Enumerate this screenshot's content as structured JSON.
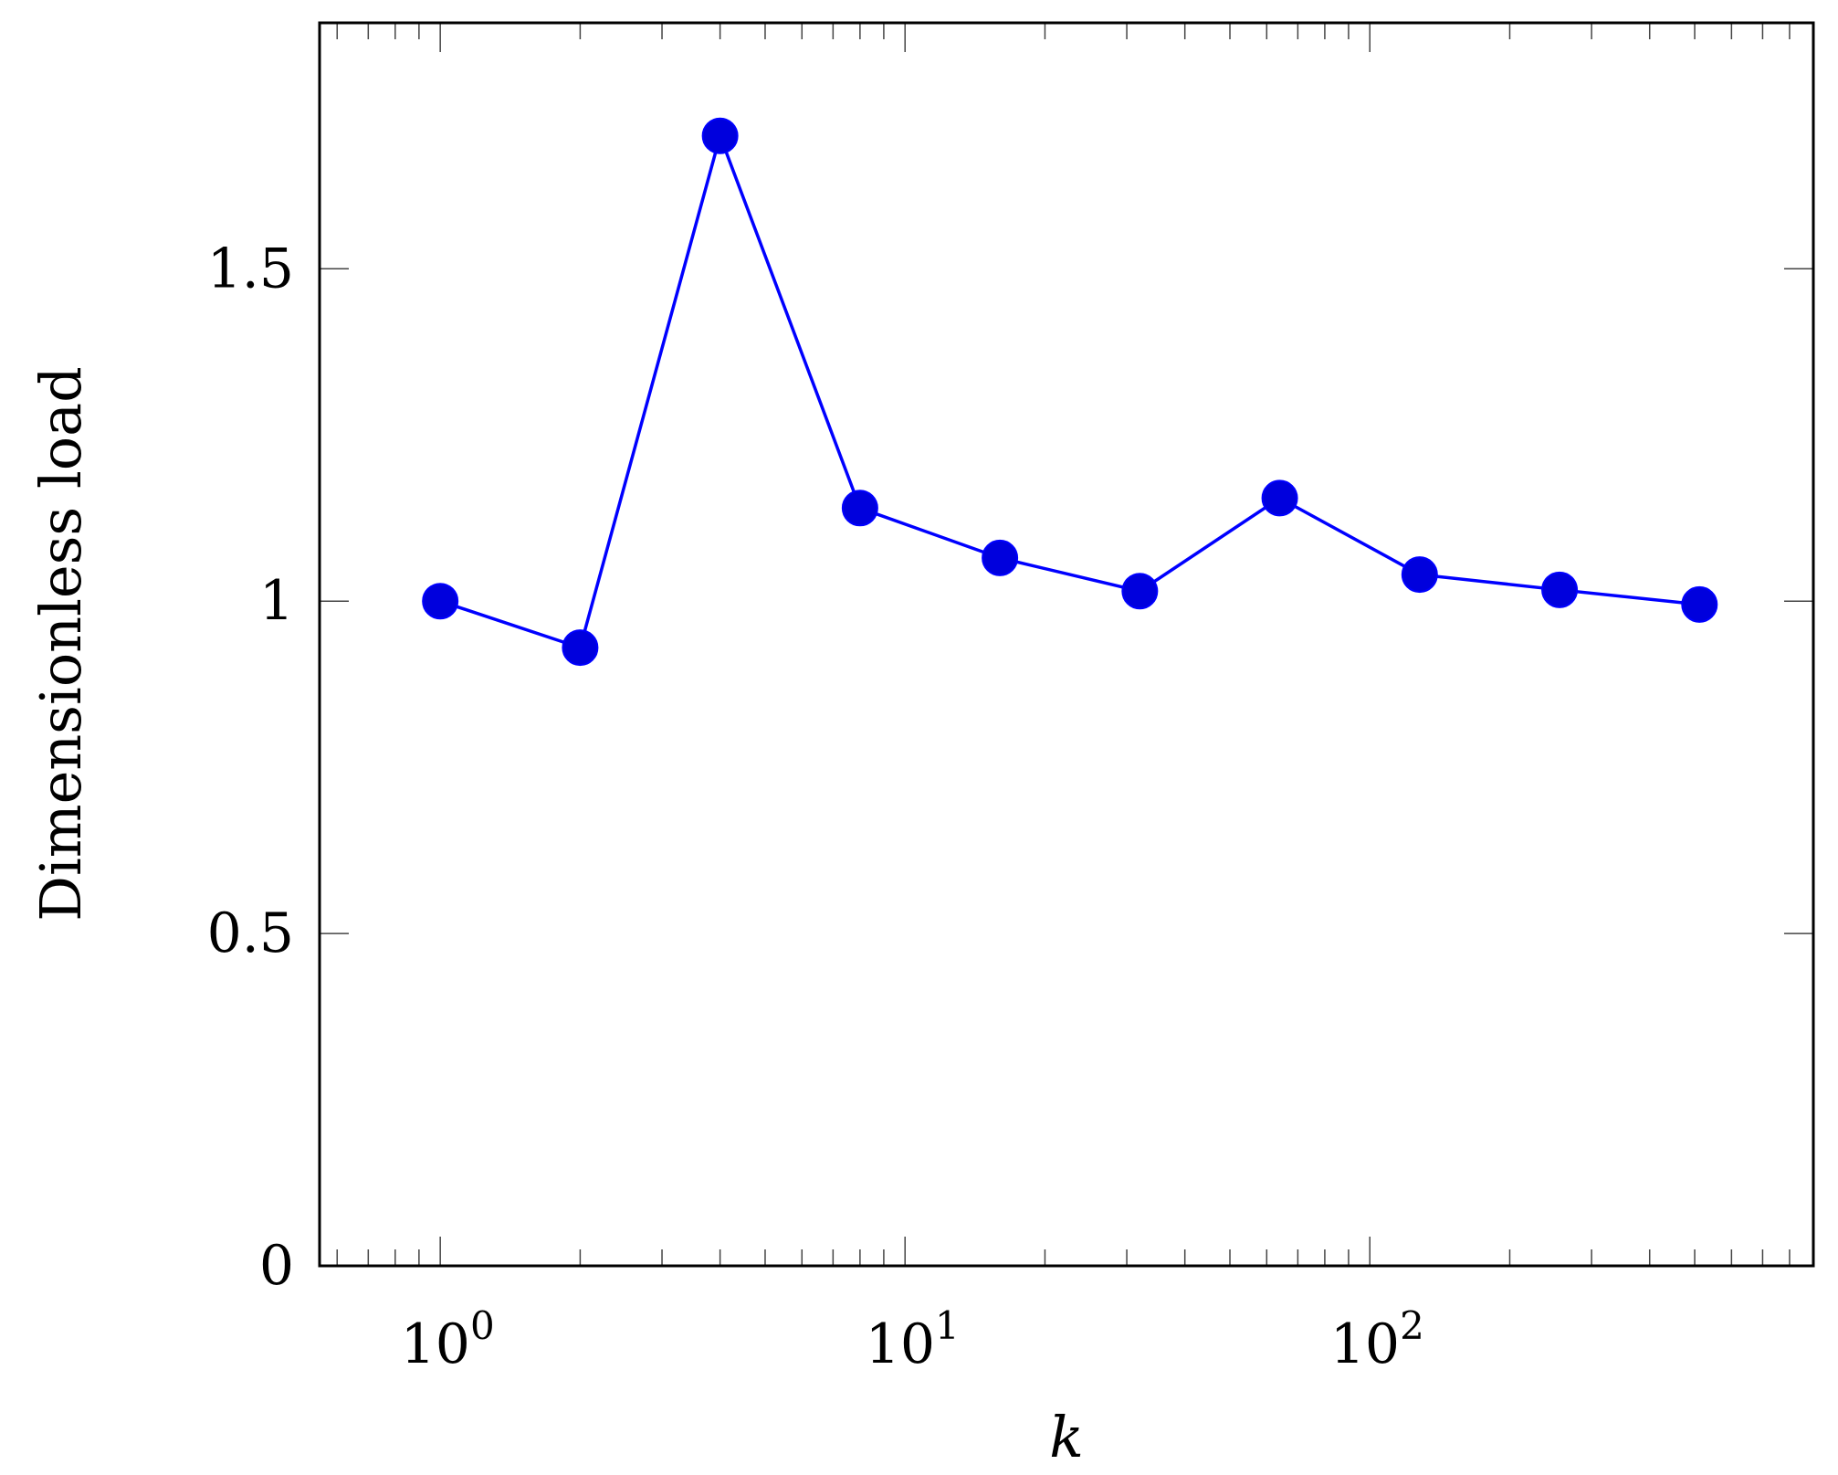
{
  "chart_data": {
    "type": "line",
    "xscale": "log",
    "xlabel": "k",
    "ylabel": "Dimensionless load",
    "xlim": [
      0.55,
      900
    ],
    "ylim": [
      0,
      1.87
    ],
    "x_ticks": [
      {
        "value": 1,
        "base": "10",
        "exp": "0"
      },
      {
        "value": 10,
        "base": "10",
        "exp": "1"
      },
      {
        "value": 100,
        "base": "10",
        "exp": "2"
      }
    ],
    "y_ticks": [
      {
        "value": 0,
        "label": "0"
      },
      {
        "value": 0.5,
        "label": "0.5"
      },
      {
        "value": 1,
        "label": "1"
      },
      {
        "value": 1.5,
        "label": "1.5"
      }
    ],
    "grid": false,
    "series": [
      {
        "color": "#0000ff",
        "marker_color": "#0000dd",
        "x": [
          1,
          2,
          4,
          8,
          16,
          32,
          64,
          128,
          256,
          512
        ],
        "y": [
          1.0,
          0.93,
          1.7,
          1.14,
          1.065,
          1.015,
          1.155,
          1.04,
          1.017,
          0.995
        ]
      }
    ]
  }
}
